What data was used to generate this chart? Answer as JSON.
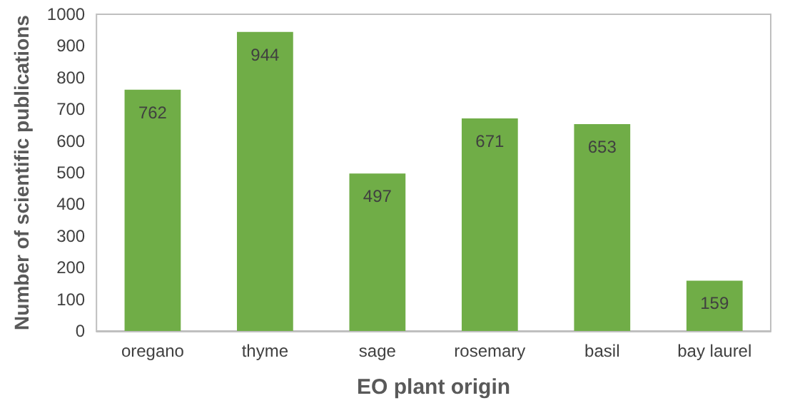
{
  "chart_data": {
    "type": "bar",
    "xlabel": "EO plant origin",
    "ylabel": "Number of scientific publications",
    "categories": [
      "oregano",
      "thyme",
      "sage",
      "rosemary",
      "basil",
      "bay laurel"
    ],
    "values": [
      762,
      944,
      497,
      671,
      653,
      159
    ],
    "color": "#70ad47",
    "data_labels": true,
    "grid": false,
    "ylim": [
      0,
      1000
    ],
    "yticks": [
      0,
      100,
      200,
      300,
      400,
      500,
      600,
      700,
      800,
      900,
      1000
    ]
  }
}
